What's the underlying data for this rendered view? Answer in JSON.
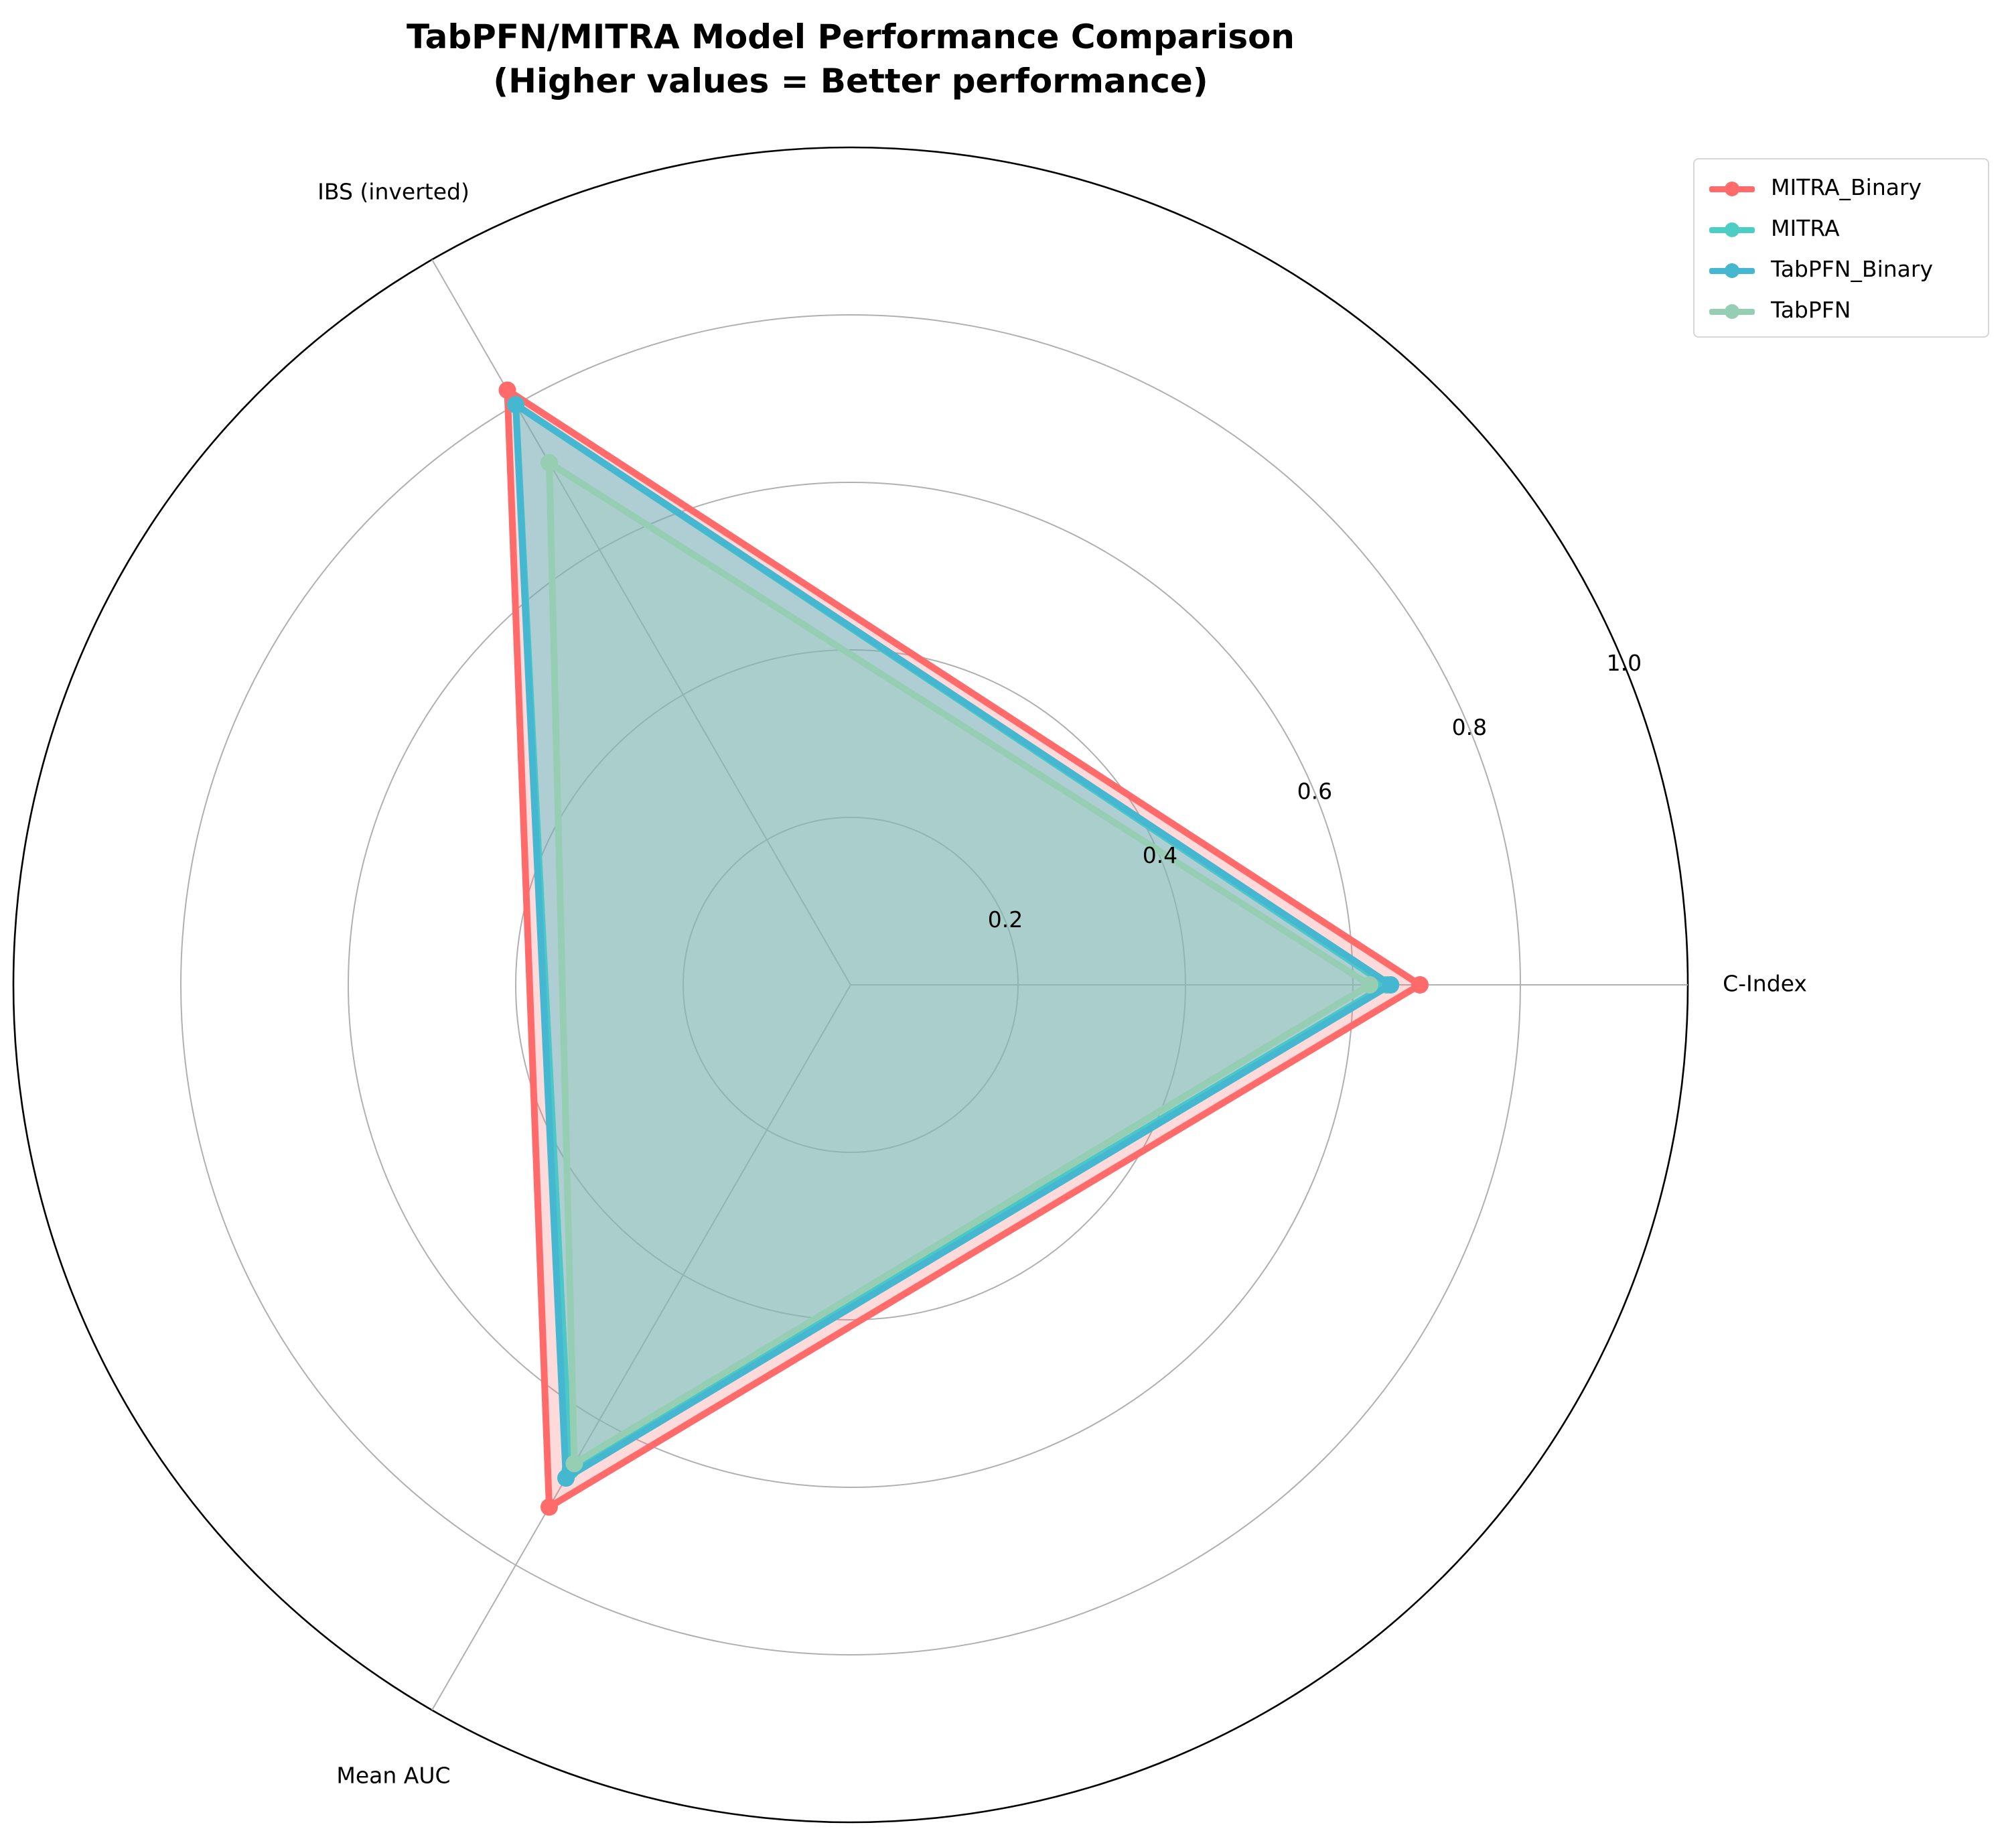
{
  "chart_data": {
    "type": "radar",
    "title": "TabPFN/MITRA Model Performance Comparison",
    "subtitle": "(Higher values = Better performance)",
    "axes": [
      "C-Index",
      "IBS (inverted)",
      "Mean AUC"
    ],
    "rlim": [
      0,
      1.0
    ],
    "r_ticks": [
      "0.2",
      "0.4",
      "0.6",
      "0.8",
      "1.0"
    ],
    "r_tick_values": [
      0.2,
      0.4,
      0.6,
      0.8,
      1.0
    ],
    "grid": true,
    "legend_position": "top-right",
    "series": [
      {
        "name": "MITRA_Binary",
        "color": "#ff6b6b",
        "values": [
          0.68,
          0.82,
          0.72
        ]
      },
      {
        "name": "MITRA",
        "color": "#4ecdc4",
        "values": [
          0.64,
          0.8,
          0.67
        ]
      },
      {
        "name": "TabPFN_Binary",
        "color": "#45b7d1",
        "values": [
          0.645,
          0.8,
          0.68
        ]
      },
      {
        "name": "TabPFN",
        "color": "#96ceb4",
        "values": [
          0.62,
          0.72,
          0.66
        ]
      }
    ]
  }
}
